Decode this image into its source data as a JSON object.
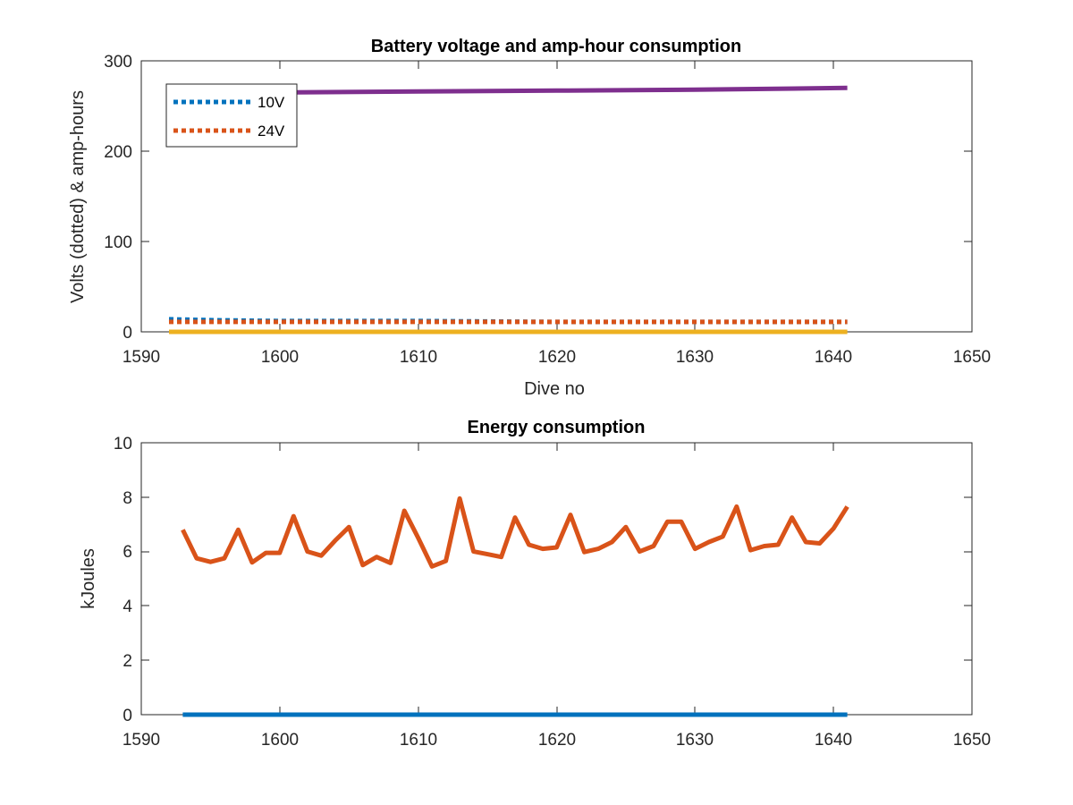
{
  "chart_data": [
    {
      "type": "line",
      "title": "Battery voltage and amp-hour consumption",
      "xlabel": "Dive no",
      "ylabel": "Volts (dotted) & amp-hours",
      "xlim": [
        1590,
        1650
      ],
      "ylim": [
        0,
        300
      ],
      "xticks": [
        "1590",
        "1600",
        "1610",
        "1620",
        "1630",
        "1640",
        "1650"
      ],
      "yticks": [
        "0",
        "100",
        "200",
        "300"
      ],
      "grid": false,
      "legend": {
        "placement": "top-left",
        "entries": [
          "10V",
          "24V"
        ]
      },
      "series": [
        {
          "name": "10V",
          "style": "dotted",
          "color": "#0072BD",
          "x": [
            1592,
            1595,
            1600,
            1610,
            1620,
            1630,
            1641
          ],
          "y": [
            14,
            13,
            12,
            12,
            11,
            11,
            11
          ]
        },
        {
          "name": "24V",
          "style": "dotted",
          "color": "#D95319",
          "x": [
            1592,
            1600,
            1610,
            1620,
            1630,
            1641
          ],
          "y": [
            11,
            11,
            11,
            11,
            11,
            11
          ]
        },
        {
          "style": "solid",
          "color": "#EDB120",
          "x": [
            1592,
            1641
          ],
          "y": [
            0,
            0
          ]
        },
        {
          "style": "solid",
          "color": "#7E2F8E",
          "x": [
            1592,
            1600,
            1610,
            1620,
            1630,
            1641
          ],
          "y": [
            264,
            265,
            266,
            267,
            268,
            270
          ]
        }
      ]
    },
    {
      "type": "line",
      "title": "Energy consumption",
      "xlabel": "",
      "ylabel": "kJoules",
      "xlim": [
        1590,
        1650
      ],
      "ylim": [
        0,
        10
      ],
      "xticks": [
        "1590",
        "1600",
        "1610",
        "1620",
        "1630",
        "1640",
        "1650"
      ],
      "yticks": [
        "0",
        "2",
        "4",
        "6",
        "8",
        "10"
      ],
      "grid": false,
      "series": [
        {
          "style": "solid",
          "color": "#0072BD",
          "x": [
            1593,
            1641
          ],
          "y": [
            0,
            0
          ]
        },
        {
          "style": "solid",
          "color": "#D95319",
          "x": [
            1593,
            1594,
            1595,
            1596,
            1597,
            1598,
            1599,
            1600,
            1601,
            1602,
            1603,
            1604,
            1605,
            1606,
            1607,
            1608,
            1609,
            1610,
            1611,
            1612,
            1613,
            1614,
            1615,
            1616,
            1617,
            1618,
            1619,
            1620,
            1621,
            1622,
            1623,
            1624,
            1625,
            1626,
            1627,
            1628,
            1629,
            1630,
            1631,
            1632,
            1633,
            1634,
            1635,
            1636,
            1637,
            1638,
            1639,
            1640,
            1641
          ],
          "y": [
            6.8,
            5.75,
            5.62,
            5.75,
            6.8,
            5.6,
            5.95,
            5.95,
            7.3,
            6.0,
            5.85,
            6.4,
            6.9,
            5.5,
            5.8,
            5.58,
            7.5,
            6.5,
            5.45,
            5.65,
            7.95,
            6.0,
            5.9,
            5.8,
            7.25,
            6.25,
            6.1,
            6.15,
            7.35,
            5.98,
            6.1,
            6.35,
            6.9,
            6.0,
            6.2,
            7.1,
            7.1,
            6.1,
            6.35,
            6.55,
            7.65,
            6.05,
            6.2,
            6.25,
            7.25,
            6.35,
            6.3,
            6.85,
            7.65
          ]
        }
      ]
    }
  ]
}
